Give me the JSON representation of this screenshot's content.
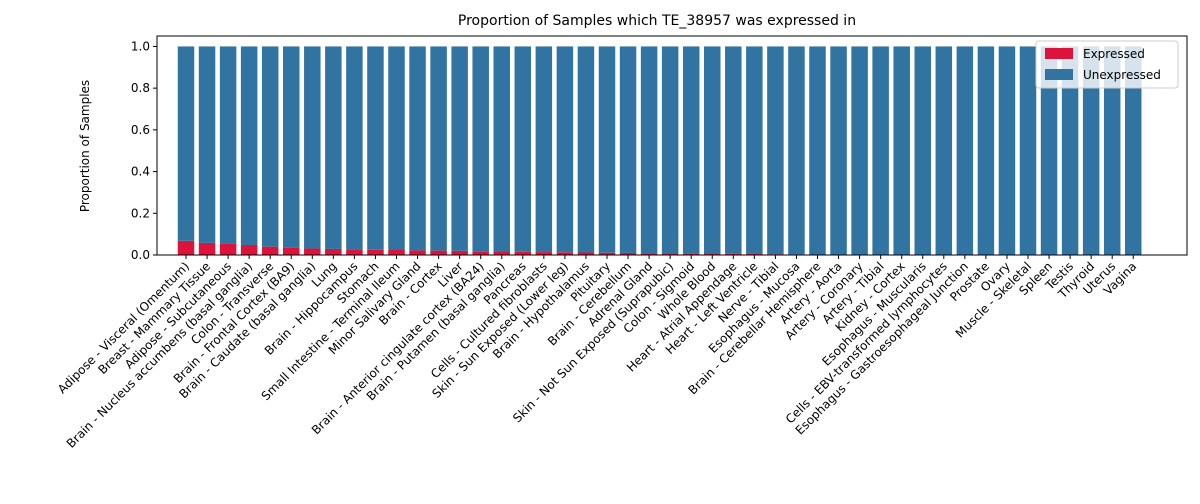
{
  "chart_data": {
    "type": "bar",
    "stacked": true,
    "title": "Proportion of Samples which TE_38957 was expressed in",
    "xlabel": "",
    "ylabel": "Proportion of Samples",
    "ylim": [
      0,
      1.05
    ],
    "yticks": [
      "0.0",
      "0.2",
      "0.4",
      "0.6",
      "0.8",
      "1.0"
    ],
    "grid": false,
    "legend_position": "top-right",
    "categories": [
      "Adipose - Visceral (Omentum)",
      "Breast - Mammary Tissue",
      "Adipose - Subcutaneous",
      "Brain - Nucleus accumbens (basal ganglia)",
      "Colon - Transverse",
      "Brain - Frontal Cortex (BA9)",
      "Brain - Caudate (basal ganglia)",
      "Lung",
      "Brain - Hippocampus",
      "Stomach",
      "Small Intestine - Terminal Ileum",
      "Minor Salivary Gland",
      "Brain - Cortex",
      "Liver",
      "Brain - Anterior cingulate cortex (BA24)",
      "Brain - Putamen (basal ganglia)",
      "Pancreas",
      "Cells - Cultured fibroblasts",
      "Skin - Sun Exposed (Lower leg)",
      "Brain - Hypothalamus",
      "Pituitary",
      "Brain - Cerebellum",
      "Adrenal Gland",
      "Skin - Not Sun Exposed (Suprapubic)",
      "Colon - Sigmoid",
      "Whole Blood",
      "Heart - Atrial Appendage",
      "Heart - Left Ventricle",
      "Nerve - Tibial",
      "Esophagus - Mucosa",
      "Brain - Cerebellar Hemisphere",
      "Artery - Aorta",
      "Artery - Coronary",
      "Artery - Tibial",
      "Kidney - Cortex",
      "Esophagus - Muscularis",
      "Cells - EBV-transformed lymphocytes",
      "Esophagus - Gastroesophageal Junction",
      "Prostate",
      "Ovary",
      "Muscle - Skeletal",
      "Spleen",
      "Testis",
      "Thyroid",
      "Uterus",
      "Vagina"
    ],
    "series": [
      {
        "name": "Expressed",
        "color": "#dc143c",
        "values": [
          0.068,
          0.058,
          0.053,
          0.048,
          0.04,
          0.034,
          0.031,
          0.029,
          0.027,
          0.025,
          0.024,
          0.022,
          0.021,
          0.02,
          0.018,
          0.017,
          0.015,
          0.014,
          0.013,
          0.012,
          0.011,
          0.01,
          0.009,
          0.009,
          0.008,
          0.007,
          0.006,
          0.005,
          0.004,
          0.003,
          0.002,
          0.0,
          0.0,
          0.0,
          0.0,
          0.0,
          0.0,
          0.0,
          0.0,
          0.0,
          0.0,
          0.0,
          0.0,
          0.0,
          0.0,
          0.0
        ]
      },
      {
        "name": "Unexpressed",
        "color": "#3274a1",
        "values": [
          0.932,
          0.942,
          0.947,
          0.952,
          0.96,
          0.966,
          0.969,
          0.971,
          0.973,
          0.975,
          0.976,
          0.978,
          0.979,
          0.98,
          0.982,
          0.983,
          0.985,
          0.986,
          0.987,
          0.988,
          0.989,
          0.99,
          0.991,
          0.991,
          0.992,
          0.993,
          0.994,
          0.995,
          0.996,
          0.997,
          0.998,
          1.0,
          1.0,
          1.0,
          1.0,
          1.0,
          1.0,
          1.0,
          1.0,
          1.0,
          1.0,
          1.0,
          1.0,
          1.0,
          1.0,
          1.0
        ]
      }
    ]
  }
}
